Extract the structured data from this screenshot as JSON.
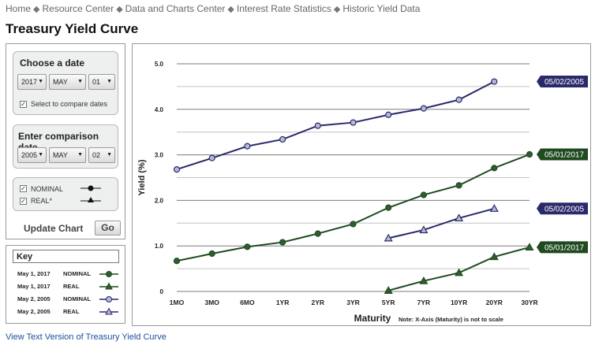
{
  "breadcrumb": {
    "items": [
      "Home",
      "Resource Center",
      "Data and Charts Center",
      "Interest Rate Statistics",
      "Historic Yield Data"
    ],
    "separator": "◆"
  },
  "page_title": "Treasury Yield Curve",
  "choose_date": {
    "title": "Choose a date",
    "year": "2017",
    "month": "MAY",
    "day": "01",
    "compare_checkbox_label": "Select to compare dates",
    "compare_checked": true
  },
  "comparison_date": {
    "title": "Enter comparison date",
    "year": "2005",
    "month": "MAY",
    "day": "02"
  },
  "toggles": {
    "nominal_label": "NOMINAL",
    "nominal_checked": true,
    "real_label": "REAL*",
    "real_checked": true
  },
  "update": {
    "label": "Update Chart",
    "go_label": "Go"
  },
  "key": {
    "title": "Key",
    "rows": [
      {
        "date": "May 1, 2017",
        "type": "NOMINAL",
        "color": "#1f4a1f",
        "marker": "circle",
        "fill": "#2e5e2e"
      },
      {
        "date": "May 1, 2017",
        "type": "REAL",
        "color": "#1f4a1f",
        "marker": "triangle",
        "fill": "#2e5e2e"
      },
      {
        "date": "May 2, 2005",
        "type": "NOMINAL",
        "color": "#2a2a6a",
        "marker": "circle",
        "fill": "#b8b8d8"
      },
      {
        "date": "May 2, 2005",
        "type": "REAL",
        "color": "#2a2a6a",
        "marker": "triangle",
        "fill": "#b8b8d8"
      }
    ]
  },
  "footer_link": "View Text Version of Treasury Yield Curve",
  "chart_data": {
    "type": "line",
    "categories": [
      "1MO",
      "3MO",
      "6MO",
      "1YR",
      "2YR",
      "3YR",
      "5YR",
      "7YR",
      "10YR",
      "20YR",
      "30YR"
    ],
    "xlabel": "Maturity",
    "xnote": "Note: X-Axis (Maturity) is not to scale",
    "ylabel": "Yield (%)",
    "ylim": [
      0,
      5
    ],
    "yticks": [
      "0",
      "1.0",
      "2.0",
      "3.0",
      "4.0",
      "5.0"
    ],
    "grid": true,
    "series": [
      {
        "label_tag": "05/02/2005",
        "kind": "nominal",
        "color": "#2a2a6a",
        "marker_fill": "#b8b8d8",
        "marker": "circle",
        "values": [
          2.68,
          2.93,
          3.19,
          3.34,
          3.64,
          3.71,
          3.88,
          4.02,
          4.21,
          4.61,
          null
        ]
      },
      {
        "label_tag": "05/01/2017",
        "kind": "nominal",
        "color": "#1f4a1f",
        "marker_fill": "#2e5e2e",
        "marker": "circle",
        "values": [
          0.67,
          0.83,
          0.98,
          1.08,
          1.27,
          1.48,
          1.84,
          2.12,
          2.33,
          2.71,
          3.01
        ]
      },
      {
        "label_tag": "05/02/2005",
        "kind": "real",
        "color": "#2a2a6a",
        "marker_fill": "#b8b8d8",
        "marker": "triangle",
        "values": [
          null,
          null,
          null,
          null,
          null,
          null,
          1.17,
          1.35,
          1.61,
          1.82,
          null
        ]
      },
      {
        "label_tag": "05/01/2017",
        "kind": "real",
        "color": "#1f4a1f",
        "marker_fill": "#2e5e2e",
        "marker": "triangle",
        "values": [
          null,
          null,
          null,
          null,
          null,
          null,
          0.02,
          0.23,
          0.41,
          0.76,
          0.97
        ]
      }
    ]
  }
}
